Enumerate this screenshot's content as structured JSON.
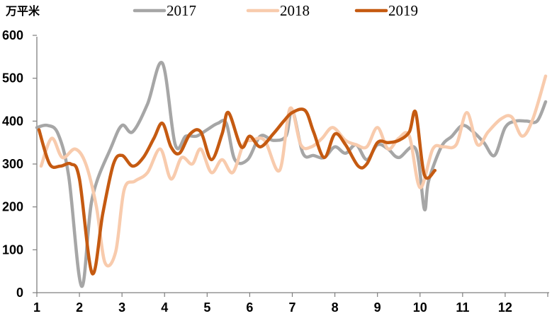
{
  "chart_data": {
    "type": "line",
    "unit_label": "万平米",
    "ylim": [
      0,
      600
    ],
    "y_ticks": [
      "0",
      "100",
      "200",
      "300",
      "400",
      "500",
      "600"
    ],
    "xlim": [
      1,
      13
    ],
    "x_ticks": [
      "1",
      "2",
      "3",
      "4",
      "5",
      "6",
      "7",
      "8",
      "9",
      "10",
      "11",
      "12"
    ],
    "grid": false,
    "legend_position": "top",
    "series": [
      {
        "name": "2017",
        "color": "#A6A6A6",
        "x": [
          1.0,
          1.25,
          1.5,
          1.75,
          2.05,
          2.3,
          2.75,
          3.0,
          3.25,
          3.6,
          3.95,
          4.25,
          4.5,
          4.75,
          5.0,
          5.25,
          5.45,
          5.65,
          5.95,
          6.25,
          6.55,
          6.85,
          7.0,
          7.25,
          7.5,
          7.75,
          8.0,
          8.25,
          8.5,
          8.75,
          9.0,
          9.25,
          9.5,
          9.9,
          10.1,
          10.2,
          10.5,
          10.75,
          11.0,
          11.25,
          11.5,
          11.75,
          12.0,
          12.25,
          12.5,
          12.75,
          12.95
        ],
        "y": [
          385,
          390,
          370,
          270,
          15,
          220,
          340,
          390,
          375,
          440,
          535,
          345,
          365,
          365,
          380,
          395,
          395,
          310,
          310,
          365,
          355,
          365,
          425,
          325,
          320,
          315,
          340,
          325,
          345,
          310,
          345,
          335,
          315,
          335,
          195,
          260,
          340,
          365,
          390,
          375,
          350,
          320,
          385,
          400,
          400,
          400,
          445
        ]
      },
      {
        "name": "2018",
        "color": "#F8CBAD",
        "x": [
          1.1,
          1.35,
          1.6,
          1.9,
          2.15,
          2.4,
          2.6,
          2.85,
          3.05,
          3.3,
          3.6,
          3.9,
          4.15,
          4.4,
          4.65,
          4.85,
          5.1,
          5.35,
          5.6,
          5.85,
          6.05,
          6.35,
          6.7,
          6.95,
          7.2,
          7.45,
          7.7,
          7.95,
          8.25,
          8.5,
          8.75,
          9.0,
          9.25,
          9.5,
          9.75,
          10.0,
          10.3,
          10.55,
          10.85,
          11.1,
          11.35,
          11.6,
          11.9,
          12.15,
          12.4,
          12.65,
          12.95
        ],
        "y": [
          295,
          360,
          315,
          335,
          300,
          200,
          70,
          95,
          240,
          260,
          280,
          335,
          265,
          315,
          300,
          335,
          280,
          310,
          280,
          345,
          355,
          355,
          285,
          430,
          345,
          340,
          360,
          385,
          355,
          345,
          340,
          385,
          335,
          360,
          365,
          245,
          335,
          340,
          345,
          420,
          345,
          375,
          405,
          410,
          365,
          405,
          505
        ]
      },
      {
        "name": "2019",
        "color": "#C55A11",
        "x": [
          1.05,
          1.3,
          1.55,
          1.8,
          2.0,
          2.3,
          2.55,
          2.8,
          3.0,
          3.25,
          3.5,
          3.75,
          3.95,
          4.15,
          4.35,
          4.6,
          4.85,
          5.1,
          5.35,
          5.5,
          5.8,
          6.0,
          6.25,
          6.55,
          6.8,
          7.0,
          7.3,
          7.5,
          7.75,
          8.0,
          8.25,
          8.55,
          8.75,
          9.0,
          9.25,
          9.5,
          9.75,
          9.9,
          10.1,
          10.35
        ],
        "y": [
          380,
          300,
          295,
          300,
          265,
          45,
          185,
          300,
          320,
          295,
          315,
          360,
          395,
          340,
          325,
          370,
          375,
          310,
          370,
          420,
          340,
          365,
          340,
          370,
          400,
          420,
          425,
          375,
          315,
          370,
          345,
          295,
          300,
          350,
          350,
          355,
          375,
          420,
          275,
          285
        ]
      }
    ]
  }
}
